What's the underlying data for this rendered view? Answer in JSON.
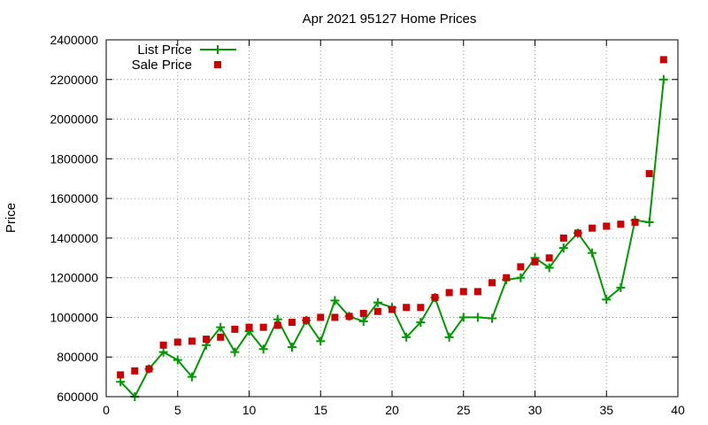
{
  "chart_data": {
    "type": "line",
    "title": "Apr 2021 95127 Home Prices",
    "xlabel": "",
    "ylabel": "Price",
    "xlim": [
      0,
      40
    ],
    "ylim": [
      600000,
      2400000
    ],
    "x_ticks": [
      "0",
      "5",
      "10",
      "15",
      "20",
      "25",
      "30",
      "35",
      "40"
    ],
    "y_ticks": [
      "600000",
      "800000",
      "1000000",
      "1200000",
      "1400000",
      "1600000",
      "1800000",
      "2000000",
      "2200000",
      "2400000"
    ],
    "grid": true,
    "legend_position": "top-left",
    "series": [
      {
        "name": "List Price",
        "style": "line-plus",
        "color": "#009900",
        "x": [
          1,
          2,
          3,
          4,
          5,
          6,
          7,
          8,
          9,
          10,
          11,
          12,
          13,
          14,
          15,
          16,
          17,
          18,
          19,
          20,
          21,
          22,
          23,
          24,
          25,
          26,
          27,
          28,
          29,
          30,
          31,
          32,
          33,
          34,
          35,
          36,
          37,
          38,
          39
        ],
        "y": [
          675000,
          600000,
          740000,
          825000,
          785000,
          700000,
          860000,
          950000,
          825000,
          930000,
          840000,
          990000,
          850000,
          985000,
          880000,
          1085000,
          1005000,
          980000,
          1075000,
          1050000,
          900000,
          975000,
          1100000,
          900000,
          1000000,
          1000000,
          995000,
          1190000,
          1200000,
          1300000,
          1250000,
          1350000,
          1425000,
          1325000,
          1090000,
          1150000,
          1490000,
          1480000,
          2200000
        ]
      },
      {
        "name": "Sale Price",
        "style": "square-points",
        "color": "#cc0000",
        "x": [
          1,
          2,
          3,
          4,
          5,
          6,
          7,
          8,
          9,
          10,
          11,
          12,
          13,
          14,
          15,
          16,
          17,
          18,
          19,
          20,
          21,
          22,
          23,
          24,
          25,
          26,
          27,
          28,
          29,
          30,
          31,
          32,
          33,
          34,
          35,
          36,
          37,
          38,
          39
        ],
        "y": [
          710000,
          730000,
          740000,
          860000,
          875000,
          880000,
          890000,
          900000,
          940000,
          950000,
          950000,
          960000,
          975000,
          985000,
          1000000,
          1000000,
          1005000,
          1020000,
          1030000,
          1040000,
          1050000,
          1050000,
          1100000,
          1125000,
          1130000,
          1130000,
          1175000,
          1200000,
          1255000,
          1280000,
          1300000,
          1400000,
          1425000,
          1450000,
          1460000,
          1470000,
          1480000,
          1725000,
          2300000
        ]
      }
    ]
  }
}
